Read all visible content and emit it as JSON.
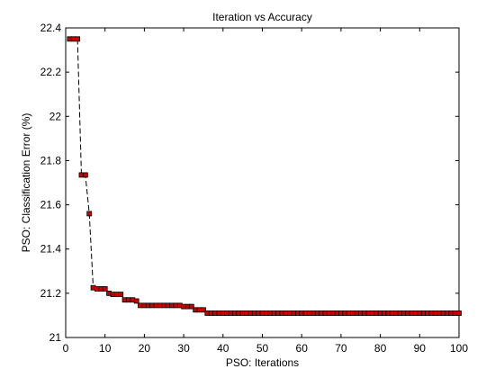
{
  "chart_data": {
    "type": "line",
    "title": "Iteration vs Accuracy",
    "xlabel": "PSO: Iterations",
    "ylabel": "PSO: Classification Error (%)",
    "xlim": [
      0,
      100
    ],
    "ylim": [
      21,
      22.4
    ],
    "xticks": [
      "0",
      "10",
      "20",
      "30",
      "40",
      "50",
      "60",
      "70",
      "80",
      "90",
      "100"
    ],
    "yticks": [
      "21",
      "21.2",
      "21.4",
      "21.6",
      "21.8",
      "22",
      "22.2",
      "22.4"
    ],
    "grid": false,
    "line_style": "dashed",
    "line_color": "#000000",
    "marker": "square",
    "marker_face_color": "#cc0000",
    "marker_edge_color": "#000000",
    "series": [
      {
        "x": [
          1,
          2,
          3,
          4,
          5,
          6,
          7,
          8,
          9,
          10,
          11,
          12,
          13,
          14,
          15,
          16,
          17,
          18,
          19,
          20,
          21,
          22,
          23,
          24,
          25,
          26,
          27,
          28,
          29,
          30,
          31,
          32,
          33,
          34,
          35,
          36,
          37,
          38,
          39,
          40,
          41,
          42,
          43,
          44,
          45,
          46,
          47,
          48,
          49,
          50,
          51,
          52,
          53,
          54,
          55,
          56,
          57,
          58,
          59,
          60,
          61,
          62,
          63,
          64,
          65,
          66,
          67,
          68,
          69,
          70,
          71,
          72,
          73,
          74,
          75,
          76,
          77,
          78,
          79,
          80,
          81,
          82,
          83,
          84,
          85,
          86,
          87,
          88,
          89,
          90,
          91,
          92,
          93,
          94,
          95,
          96,
          97,
          98,
          99,
          100
        ],
        "y": [
          22.35,
          22.35,
          22.35,
          21.735,
          21.735,
          21.56,
          21.225,
          21.22,
          21.22,
          21.22,
          21.2,
          21.195,
          21.195,
          21.195,
          21.17,
          21.17,
          21.17,
          21.165,
          21.145,
          21.145,
          21.145,
          21.145,
          21.145,
          21.145,
          21.145,
          21.145,
          21.145,
          21.145,
          21.145,
          21.14,
          21.14,
          21.14,
          21.125,
          21.125,
          21.125,
          21.11,
          21.11,
          21.11,
          21.11,
          21.11,
          21.11,
          21.11,
          21.11,
          21.11,
          21.11,
          21.11,
          21.11,
          21.11,
          21.11,
          21.11,
          21.11,
          21.11,
          21.11,
          21.11,
          21.11,
          21.11,
          21.11,
          21.11,
          21.11,
          21.11,
          21.11,
          21.11,
          21.11,
          21.11,
          21.11,
          21.11,
          21.11,
          21.11,
          21.11,
          21.11,
          21.11,
          21.11,
          21.11,
          21.11,
          21.11,
          21.11,
          21.11,
          21.11,
          21.11,
          21.11,
          21.11,
          21.11,
          21.11,
          21.11,
          21.11,
          21.11,
          21.11,
          21.11,
          21.11,
          21.11,
          21.11,
          21.11,
          21.11,
          21.11,
          21.11,
          21.11,
          21.11,
          21.11,
          21.11,
          21.11
        ]
      }
    ]
  }
}
